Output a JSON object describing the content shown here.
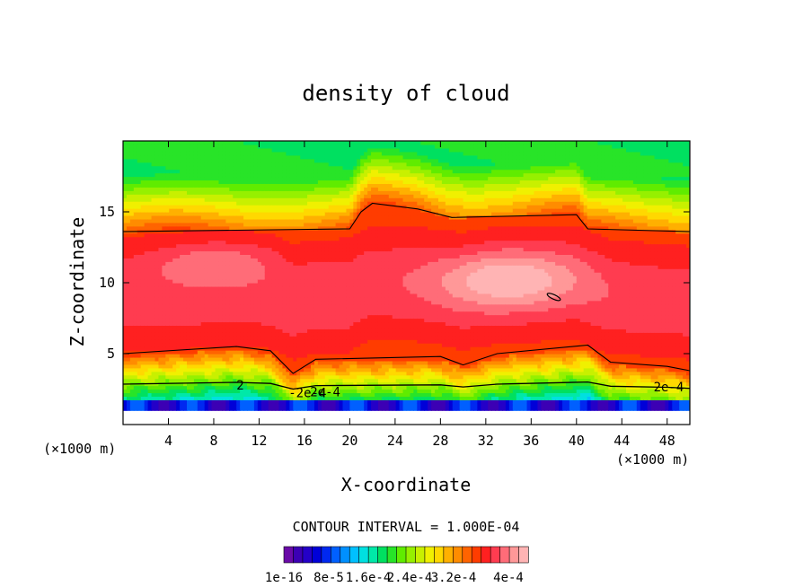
{
  "chart_data": {
    "type": "heatmap",
    "title": "density of cloud",
    "xlabel": "X-coordinate",
    "ylabel": "Z-coordinate",
    "x_unit": "(×1000 m)",
    "y_unit": "(×1000 m)",
    "xlim": [
      0,
      50
    ],
    "ylim": [
      0,
      20
    ],
    "x_ticks": [
      "4",
      "8",
      "12",
      "16",
      "20",
      "24",
      "28",
      "32",
      "36",
      "40",
      "44",
      "48"
    ],
    "y_ticks": [
      "5",
      "10",
      "15"
    ],
    "contour_interval_label": "CONTOUR INTERVAL = 1.000E-04",
    "contour_labels": [
      "2e-4",
      "-2e-4",
      "2e-4",
      "2"
    ],
    "colorbar": {
      "min": 1e-16,
      "max": 0.00044,
      "tick_labels": [
        "1e-16",
        "8e-5",
        "1.6e-4",
        "2.4e-4",
        "3.2e-4",
        "4e-4"
      ],
      "colors": [
        "#6a0aa8",
        "#3c00b4",
        "#2400c8",
        "#0000d8",
        "#0028f0",
        "#0060ff",
        "#0090ff",
        "#00c0ff",
        "#00e0e0",
        "#00e8a8",
        "#00e060",
        "#28e428",
        "#60ec00",
        "#96f000",
        "#c8f000",
        "#f0f000",
        "#ffd800",
        "#ffb000",
        "#ff8c00",
        "#ff6400",
        "#ff3c00",
        "#ff2020",
        "#ff3c50",
        "#ff6c78",
        "#ff9898",
        "#ffb4b4"
      ]
    },
    "field": {
      "base_level_km": 5,
      "level_series": [
        {
          "x": 0,
          "z": 13.6
        },
        {
          "x": 10,
          "z": 13.7
        },
        {
          "x": 20,
          "z": 13.8
        },
        {
          "x": 21,
          "z": 15.0
        },
        {
          "x": 22,
          "z": 15.6
        },
        {
          "x": 26,
          "z": 15.2
        },
        {
          "x": 29,
          "z": 14.6
        },
        {
          "x": 40,
          "z": 14.8
        },
        {
          "x": 41,
          "z": 13.8
        },
        {
          "x": 50,
          "z": 13.6
        }
      ],
      "low_level_series": [
        {
          "x": 0,
          "z": 4.8
        },
        {
          "x": 10,
          "z": 5.3
        },
        {
          "x": 13,
          "z": 5.0
        },
        {
          "x": 15,
          "z": 3.4
        },
        {
          "x": 17,
          "z": 4.4
        },
        {
          "x": 28,
          "z": 4.6
        },
        {
          "x": 30,
          "z": 4.0
        },
        {
          "x": 33,
          "z": 4.8
        },
        {
          "x": 41,
          "z": 5.4
        },
        {
          "x": 43,
          "z": 4.2
        },
        {
          "x": 48,
          "z": 3.9
        },
        {
          "x": 50,
          "z": 3.6
        }
      ]
    }
  }
}
